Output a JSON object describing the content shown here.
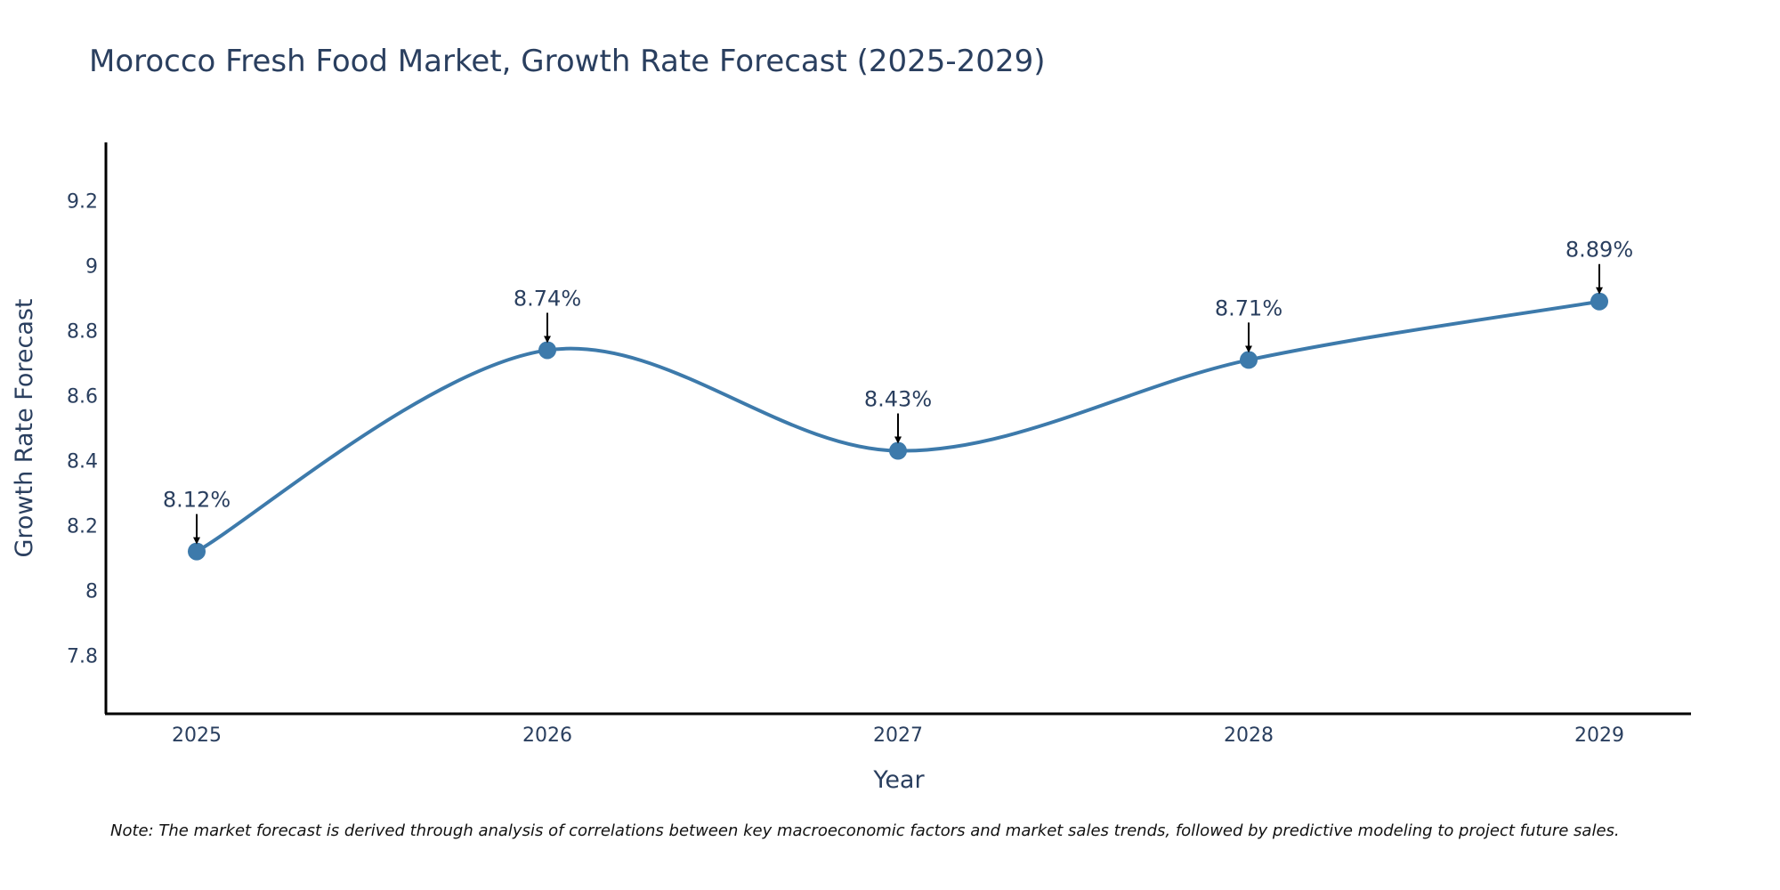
{
  "chart_data": {
    "type": "line",
    "title": "Morocco Fresh Food Market, Growth Rate Forecast (2025-2029)",
    "xlabel": "Year",
    "ylabel": "Growth Rate Forecast",
    "categories": [
      "2025",
      "2026",
      "2027",
      "2028",
      "2029"
    ],
    "values": [
      8.12,
      8.74,
      8.43,
      8.71,
      8.89
    ],
    "data_labels": [
      "8.12%",
      "8.74%",
      "8.43%",
      "8.71%",
      "8.89%"
    ],
    "ylim": [
      7.62,
      9.38
    ],
    "yticks": [
      7.8,
      8,
      8.2,
      8.4,
      8.6,
      8.8,
      9,
      9.2
    ],
    "ytick_labels": [
      "7.8",
      "8",
      "8.2",
      "8.4",
      "8.6",
      "8.8",
      "9",
      "9.2"
    ],
    "grid": false,
    "line_shape": "spline",
    "series_color": "#3d7aab",
    "note": "Note: The market forecast is derived through analysis of correlations between key macroeconomic factors and market sales trends, followed by predictive modeling to project future sales."
  }
}
